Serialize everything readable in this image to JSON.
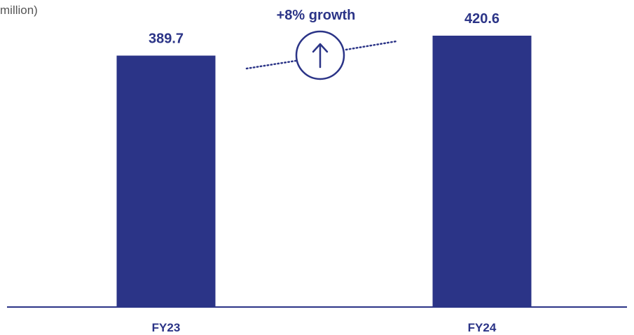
{
  "unit_label": "million)",
  "colors": {
    "bar": "#2b3487",
    "text": "#2b3487",
    "axis": "#2b3487",
    "unit_text": "#555555"
  },
  "chart_data": {
    "type": "bar",
    "categories": [
      "FY23",
      "FY24"
    ],
    "values": [
      389.7,
      420.6
    ],
    "value_labels": [
      "389.7",
      "420.6"
    ],
    "ylim": [
      0,
      420.6
    ],
    "grid": false,
    "annotation": {
      "text": "+8% growth",
      "icon": "arrow-up-circle-icon"
    }
  }
}
